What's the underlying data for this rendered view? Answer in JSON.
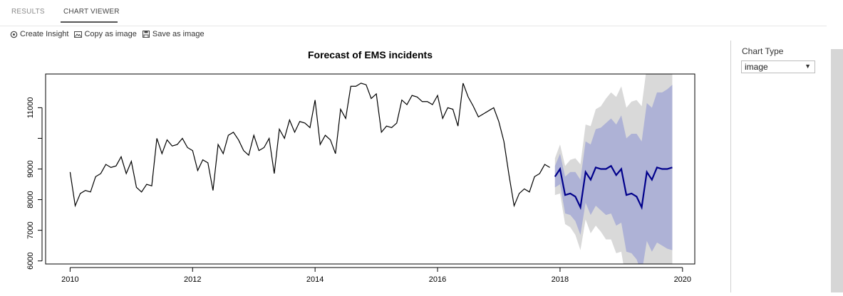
{
  "tabs": [
    {
      "label": "RESULTS",
      "active": false
    },
    {
      "label": "CHART VIEWER",
      "active": true
    }
  ],
  "toolbar": {
    "create_insight": "Create Insight",
    "copy_image": "Copy as image",
    "save_image": "Save as image"
  },
  "panel": {
    "chart_type_label": "Chart Type",
    "chart_type_value": "image"
  },
  "chart_data": {
    "type": "line",
    "title": "Forecast of EMS incidents",
    "xlabel": "",
    "ylabel": "",
    "xlim": [
      2009.6,
      2020.2
    ],
    "ylim": [
      5900,
      12100
    ],
    "xticks": [
      2010,
      2012,
      2014,
      2016,
      2018,
      2020
    ],
    "yticks": [
      6000,
      7000,
      8000,
      9000,
      10000,
      11000
    ],
    "ytick_labels": [
      "6000",
      "7000",
      "8000",
      "9000",
      "",
      "11000"
    ],
    "grid": false,
    "legend": "none",
    "colors": {
      "history": "#000000",
      "forecast": "#00008b",
      "band80": "#aeb2d6",
      "band95": "#d9d9d9"
    },
    "series": [
      {
        "role": "history",
        "x_start": 2010.0,
        "x_step": 0.083333,
        "values": [
          8900,
          7800,
          8200,
          8300,
          8250,
          8750,
          8850,
          9150,
          9050,
          9100,
          9400,
          8850,
          9250,
          8400,
          8250,
          8500,
          8450,
          10000,
          9500,
          9950,
          9750,
          9800,
          10000,
          9700,
          9600,
          8950,
          9300,
          9200,
          8300,
          9800,
          9500,
          10100,
          10200,
          9950,
          9600,
          9450,
          10100,
          9600,
          9700,
          10000,
          8850,
          10300,
          10000,
          10600,
          10200,
          10550,
          10500,
          10350,
          11250,
          9800,
          10100,
          9950,
          9500,
          10950,
          10650,
          11700,
          11700,
          11800,
          11750,
          11300,
          11450,
          10200,
          10400,
          10350,
          10500,
          11250,
          11100,
          11400,
          11350,
          11200,
          11200,
          11100,
          11400,
          10650,
          11000,
          10950,
          10400,
          11800,
          11350,
          11050,
          10700,
          10800,
          10900,
          11000,
          10550,
          9900,
          8800,
          7800,
          8200,
          8350,
          8250,
          8750,
          8850,
          9150,
          9050
        ]
      },
      {
        "role": "forecast",
        "x": [
          2017.917,
          2018.0,
          2018.083,
          2018.167,
          2018.25,
          2018.333,
          2018.417,
          2018.5,
          2018.583,
          2018.667,
          2018.75,
          2018.833,
          2018.917,
          2019.0,
          2019.083,
          2019.167,
          2019.25,
          2019.333,
          2019.417,
          2019.5,
          2019.583,
          2019.667,
          2019.75,
          2019.833
        ],
        "mean": [
          8750,
          9000,
          8150,
          8200,
          8100,
          7750,
          8900,
          8650,
          9050,
          9000,
          9000,
          9100,
          8800,
          9000,
          8150,
          8200,
          8100,
          7750,
          8900,
          8650,
          9050,
          9000,
          9000,
          9050
        ],
        "lo80": [
          8400,
          8500,
          7550,
          7500,
          7300,
          6850,
          7900,
          7500,
          7800,
          7650,
          7500,
          7550,
          7150,
          7250,
          6300,
          6250,
          6050,
          5600,
          6650,
          6300,
          6600,
          6500,
          6400,
          6350
        ],
        "hi80": [
          9100,
          9500,
          8750,
          8900,
          8900,
          8650,
          9900,
          9800,
          10300,
          10350,
          10500,
          10650,
          10450,
          10750,
          10000,
          10150,
          10150,
          9900,
          11150,
          11000,
          11500,
          11500,
          11600,
          11750
        ],
        "lo95": [
          8150,
          8200,
          7200,
          7100,
          6850,
          6350,
          7350,
          6900,
          7150,
          6950,
          6700,
          6700,
          6250,
          6300,
          5300,
          5200,
          4950,
          4450,
          5450,
          5050,
          5300,
          5150,
          5000,
          4900
        ],
        "hi95": [
          9350,
          9800,
          9100,
          9300,
          9350,
          9150,
          10450,
          10400,
          10950,
          11050,
          11300,
          11500,
          11350,
          11700,
          11000,
          11200,
          11250,
          11050,
          12350,
          12250,
          12800,
          12850,
          13000,
          13200
        ]
      }
    ]
  }
}
